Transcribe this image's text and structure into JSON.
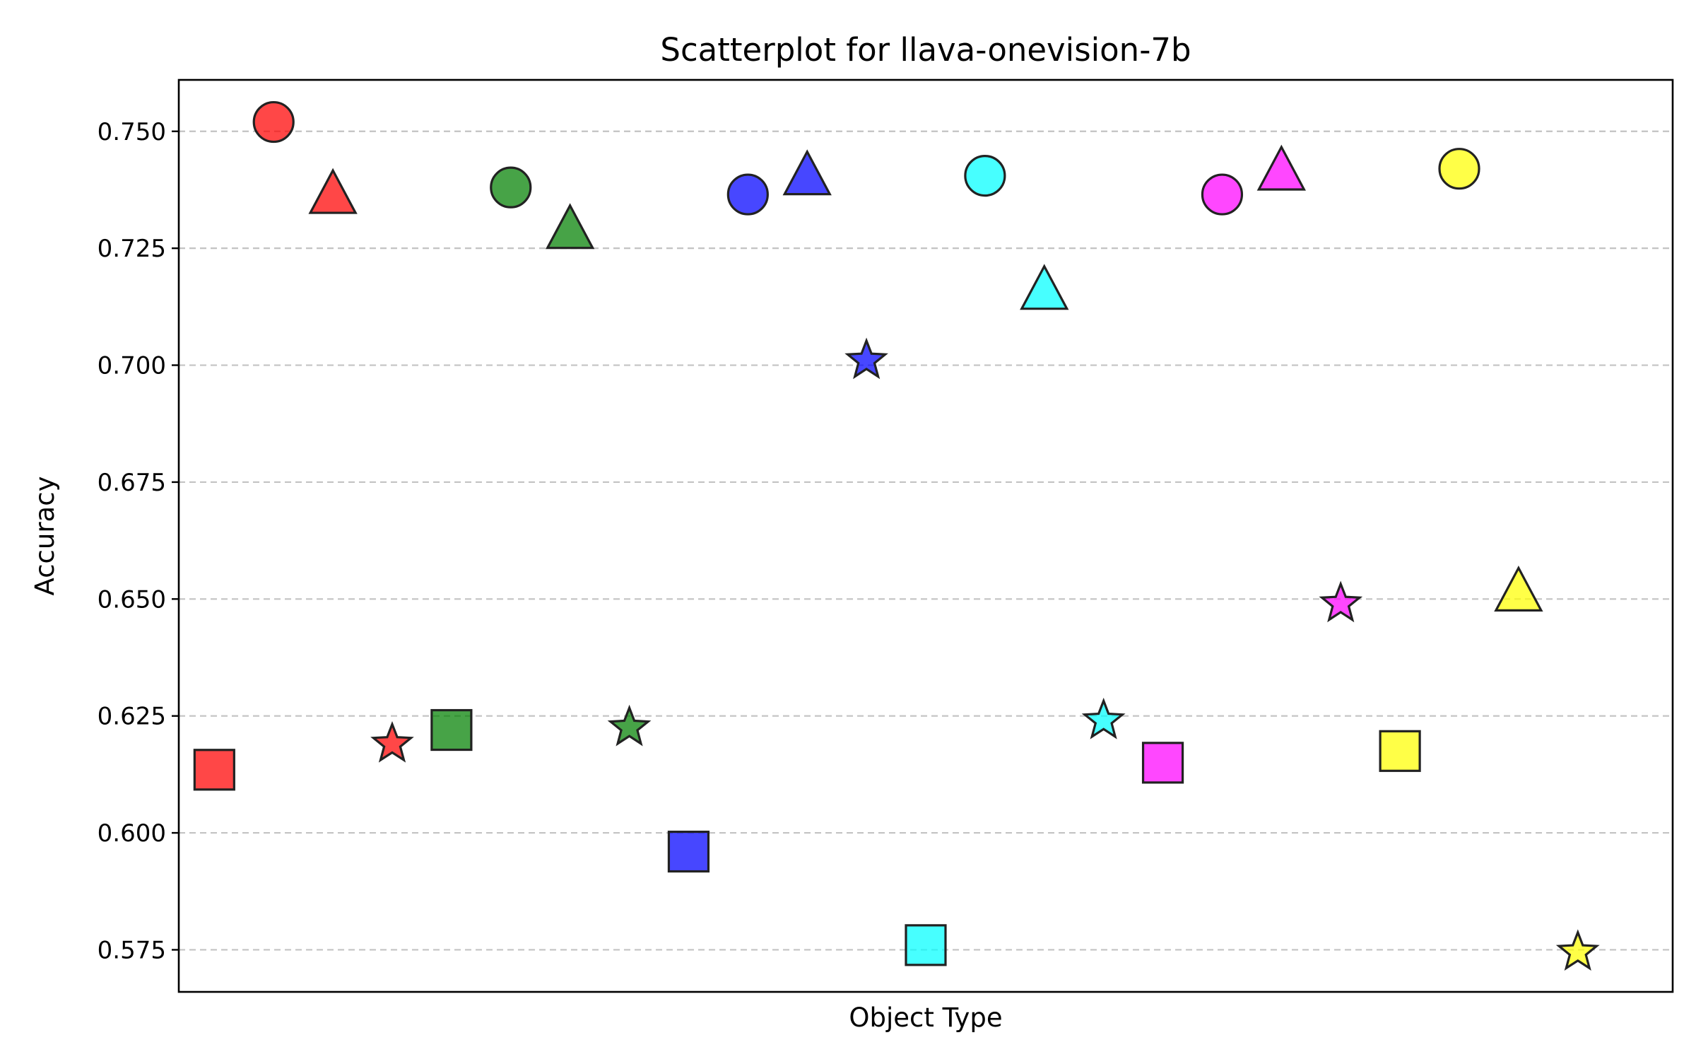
{
  "chart_data": {
    "type": "scatter",
    "title": "Scatterplot for llava-onevision-7b",
    "xlabel": "Object Type",
    "ylabel": "Accuracy",
    "ylim": [
      0.566,
      0.761
    ],
    "xlim": [
      -0.6,
      24.6
    ],
    "yticks": [
      "0.575",
      "0.600",
      "0.625",
      "0.650",
      "0.675",
      "0.700",
      "0.725",
      "0.750"
    ],
    "grid": "horizontal dashed",
    "legend": "none",
    "x_tick_labels": "none",
    "colors": {
      "red": "#ff0000",
      "green": "#008000",
      "blue": "#0000ff",
      "cyan": "#00ffff",
      "magenta": "#ff00ff",
      "yellow": "#ffff00"
    },
    "points": [
      {
        "x": 0,
        "y": 0.6135,
        "marker": "square",
        "color": "#ff0000"
      },
      {
        "x": 1,
        "y": 0.752,
        "marker": "circle",
        "color": "#ff0000"
      },
      {
        "x": 2,
        "y": 0.7365,
        "marker": "triangle",
        "color": "#ff0000"
      },
      {
        "x": 3,
        "y": 0.619,
        "marker": "star",
        "color": "#ff0000"
      },
      {
        "x": 4,
        "y": 0.622,
        "marker": "square",
        "color": "#008000"
      },
      {
        "x": 5,
        "y": 0.738,
        "marker": "circle",
        "color": "#008000"
      },
      {
        "x": 6,
        "y": 0.729,
        "marker": "triangle",
        "color": "#008000"
      },
      {
        "x": 7,
        "y": 0.6225,
        "marker": "star",
        "color": "#008000"
      },
      {
        "x": 8,
        "y": 0.596,
        "marker": "square",
        "color": "#0000ff"
      },
      {
        "x": 9,
        "y": 0.7365,
        "marker": "circle",
        "color": "#0000ff"
      },
      {
        "x": 10,
        "y": 0.7405,
        "marker": "triangle",
        "color": "#0000ff"
      },
      {
        "x": 11,
        "y": 0.701,
        "marker": "star",
        "color": "#0000ff"
      },
      {
        "x": 12,
        "y": 0.576,
        "marker": "square",
        "color": "#00ffff"
      },
      {
        "x": 13,
        "y": 0.7405,
        "marker": "circle",
        "color": "#00ffff"
      },
      {
        "x": 14,
        "y": 0.716,
        "marker": "triangle",
        "color": "#00ffff"
      },
      {
        "x": 15,
        "y": 0.624,
        "marker": "star",
        "color": "#00ffff"
      },
      {
        "x": 16,
        "y": 0.615,
        "marker": "square",
        "color": "#ff00ff"
      },
      {
        "x": 17,
        "y": 0.7365,
        "marker": "circle",
        "color": "#ff00ff"
      },
      {
        "x": 18,
        "y": 0.7415,
        "marker": "triangle",
        "color": "#ff00ff"
      },
      {
        "x": 19,
        "y": 0.649,
        "marker": "star",
        "color": "#ff00ff"
      },
      {
        "x": 20,
        "y": 0.6175,
        "marker": "square",
        "color": "#ffff00"
      },
      {
        "x": 21,
        "y": 0.742,
        "marker": "circle",
        "color": "#ffff00"
      },
      {
        "x": 22,
        "y": 0.6515,
        "marker": "triangle",
        "color": "#ffff00"
      },
      {
        "x": 23,
        "y": 0.5745,
        "marker": "star",
        "color": "#ffff00"
      }
    ]
  }
}
